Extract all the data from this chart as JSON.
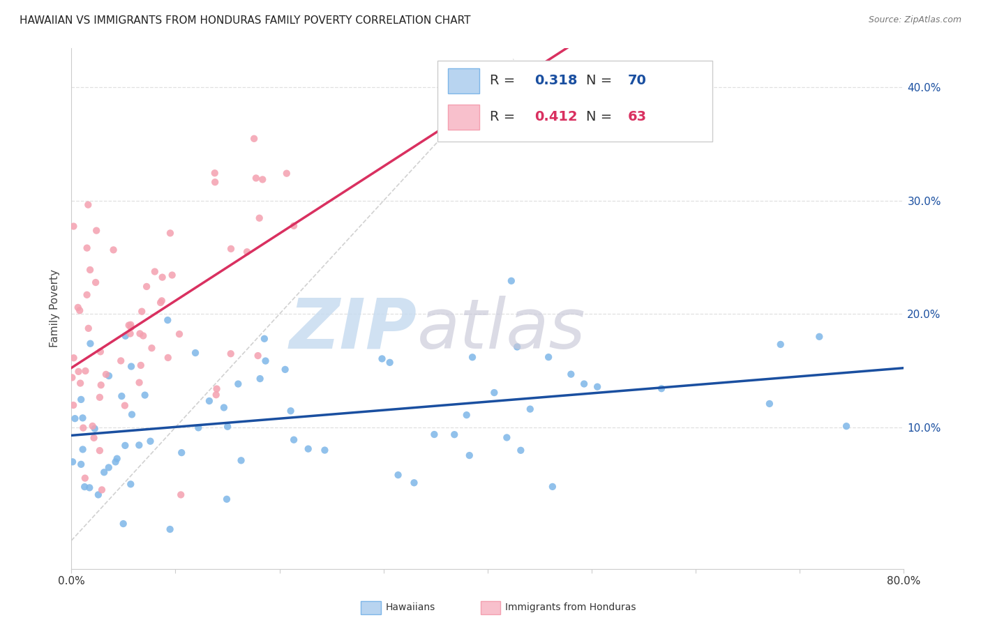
{
  "title": "HAWAIIAN VS IMMIGRANTS FROM HONDURAS FAMILY POVERTY CORRELATION CHART",
  "source": "Source: ZipAtlas.com",
  "ylabel": "Family Poverty",
  "xlim": [
    0.0,
    0.8
  ],
  "ylim": [
    -0.025,
    0.435
  ],
  "hawaiian_R": 0.318,
  "hawaiian_N": 70,
  "honduras_R": 0.412,
  "honduras_N": 63,
  "hawaiian_color": "#7EB6E8",
  "honduras_color": "#F4A0B0",
  "line_hawaiian_color": "#1A4FA0",
  "line_honduras_color": "#D93060",
  "diag_color": "#CCCCCC",
  "watermark_zip_color": "#C8DCF0",
  "watermark_atlas_color": "#C8C8D8",
  "legend_box_hawaiian": "#B8D4F0",
  "legend_box_honduras": "#F8C0CC",
  "haw_seed": 42,
  "hon_seed": 7,
  "ytick_positions": [
    0.1,
    0.2,
    0.3,
    0.4
  ],
  "ytick_labels": [
    "10.0%",
    "20.0%",
    "30.0%",
    "40.0%"
  ],
  "xtick_positions": [
    0.0,
    0.1,
    0.2,
    0.3,
    0.4,
    0.5,
    0.6,
    0.7,
    0.8
  ],
  "xtick_labels": [
    "0.0%",
    "",
    "",
    "",
    "",
    "",
    "",
    "",
    "80.0%"
  ],
  "grid_color": "#E0E0E0",
  "axis_color": "#CCCCCC",
  "title_fontsize": 11,
  "source_fontsize": 9,
  "tick_fontsize": 11,
  "label_fontsize": 11,
  "legend_fontsize": 14
}
